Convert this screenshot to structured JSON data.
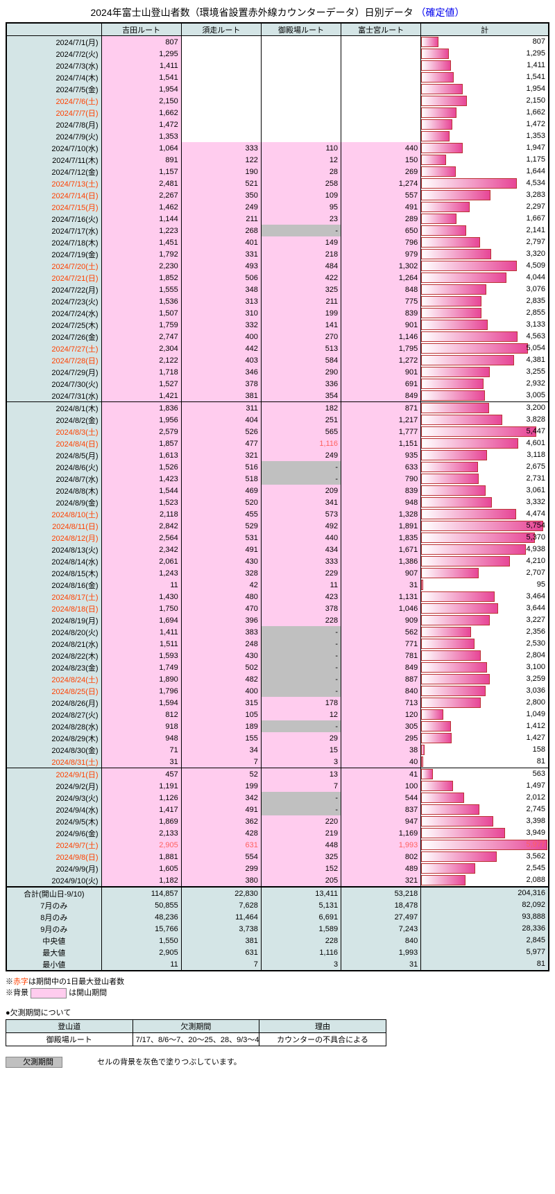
{
  "title_main": "2024年富士山登山者数（環境省設置赤外線カウンターデータ）日別データ",
  "title_confirmed": "（確定値）",
  "columns": [
    "吉田ルート",
    "須走ルート",
    "御殿場ルート",
    "富士宮ルート",
    "計"
  ],
  "bar_max": 6000,
  "rows": [
    {
      "d": "2024/7/1(月)",
      "v": [
        807,
        null,
        null,
        null,
        807
      ],
      "o": [
        1,
        0,
        0,
        0
      ]
    },
    {
      "d": "2024/7/2(火)",
      "v": [
        1295,
        null,
        null,
        null,
        1295
      ],
      "o": [
        1,
        0,
        0,
        0
      ]
    },
    {
      "d": "2024/7/3(水)",
      "v": [
        1411,
        null,
        null,
        null,
        1411
      ],
      "o": [
        1,
        0,
        0,
        0
      ]
    },
    {
      "d": "2024/7/4(木)",
      "v": [
        1541,
        null,
        null,
        null,
        1541
      ],
      "o": [
        1,
        0,
        0,
        0
      ]
    },
    {
      "d": "2024/7/5(金)",
      "v": [
        1954,
        null,
        null,
        null,
        1954
      ],
      "o": [
        1,
        0,
        0,
        0
      ]
    },
    {
      "d": "2024/7/6(土)",
      "h": 1,
      "v": [
        2150,
        null,
        null,
        null,
        2150
      ],
      "o": [
        1,
        0,
        0,
        0
      ]
    },
    {
      "d": "2024/7/7(日)",
      "h": 1,
      "v": [
        1662,
        null,
        null,
        null,
        1662
      ],
      "o": [
        1,
        0,
        0,
        0
      ]
    },
    {
      "d": "2024/7/8(月)",
      "v": [
        1472,
        null,
        null,
        null,
        1472
      ],
      "o": [
        1,
        0,
        0,
        0
      ]
    },
    {
      "d": "2024/7/9(火)",
      "v": [
        1353,
        null,
        null,
        null,
        1353
      ],
      "o": [
        1,
        0,
        0,
        0
      ]
    },
    {
      "d": "2024/7/10(水)",
      "v": [
        1064,
        333,
        110,
        440,
        1947
      ],
      "o": [
        1,
        1,
        1,
        1
      ]
    },
    {
      "d": "2024/7/11(木)",
      "v": [
        891,
        122,
        12,
        150,
        1175
      ],
      "o": [
        1,
        1,
        1,
        1
      ]
    },
    {
      "d": "2024/7/12(金)",
      "v": [
        1157,
        190,
        28,
        269,
        1644
      ],
      "o": [
        1,
        1,
        1,
        1
      ]
    },
    {
      "d": "2024/7/13(土)",
      "h": 1,
      "v": [
        2481,
        521,
        258,
        1274,
        4534
      ],
      "o": [
        1,
        1,
        1,
        1
      ]
    },
    {
      "d": "2024/7/14(日)",
      "h": 1,
      "v": [
        2267,
        350,
        109,
        557,
        3283
      ],
      "o": [
        1,
        1,
        1,
        1
      ]
    },
    {
      "d": "2024/7/15(月)",
      "h": 1,
      "v": [
        1462,
        249,
        95,
        491,
        2297
      ],
      "o": [
        1,
        1,
        1,
        1
      ]
    },
    {
      "d": "2024/7/16(火)",
      "v": [
        1144,
        211,
        23,
        289,
        1667
      ],
      "o": [
        1,
        1,
        1,
        1
      ]
    },
    {
      "d": "2024/7/17(水)",
      "v": [
        1223,
        268,
        "-",
        650,
        2141
      ],
      "o": [
        1,
        1,
        1,
        1
      ],
      "m": [
        0,
        0,
        1,
        0
      ]
    },
    {
      "d": "2024/7/18(木)",
      "v": [
        1451,
        401,
        149,
        796,
        2797
      ],
      "o": [
        1,
        1,
        1,
        1
      ]
    },
    {
      "d": "2024/7/19(金)",
      "v": [
        1792,
        331,
        218,
        979,
        3320
      ],
      "o": [
        1,
        1,
        1,
        1
      ]
    },
    {
      "d": "2024/7/20(土)",
      "h": 1,
      "v": [
        2230,
        493,
        484,
        1302,
        4509
      ],
      "o": [
        1,
        1,
        1,
        1
      ]
    },
    {
      "d": "2024/7/21(日)",
      "h": 1,
      "v": [
        1852,
        506,
        422,
        1264,
        4044
      ],
      "o": [
        1,
        1,
        1,
        1
      ]
    },
    {
      "d": "2024/7/22(月)",
      "v": [
        1555,
        348,
        325,
        848,
        3076
      ],
      "o": [
        1,
        1,
        1,
        1
      ]
    },
    {
      "d": "2024/7/23(火)",
      "v": [
        1536,
        313,
        211,
        775,
        2835
      ],
      "o": [
        1,
        1,
        1,
        1
      ]
    },
    {
      "d": "2024/7/24(水)",
      "v": [
        1507,
        310,
        199,
        839,
        2855
      ],
      "o": [
        1,
        1,
        1,
        1
      ]
    },
    {
      "d": "2024/7/25(木)",
      "v": [
        1759,
        332,
        141,
        901,
        3133
      ],
      "o": [
        1,
        1,
        1,
        1
      ]
    },
    {
      "d": "2024/7/26(金)",
      "v": [
        2747,
        400,
        270,
        1146,
        4563
      ],
      "o": [
        1,
        1,
        1,
        1
      ]
    },
    {
      "d": "2024/7/27(土)",
      "h": 1,
      "v": [
        2304,
        442,
        513,
        1795,
        5054
      ],
      "o": [
        1,
        1,
        1,
        1
      ]
    },
    {
      "d": "2024/7/28(日)",
      "h": 1,
      "v": [
        2122,
        403,
        584,
        1272,
        4381
      ],
      "o": [
        1,
        1,
        1,
        1
      ]
    },
    {
      "d": "2024/7/29(月)",
      "v": [
        1718,
        346,
        290,
        901,
        3255
      ],
      "o": [
        1,
        1,
        1,
        1
      ]
    },
    {
      "d": "2024/7/30(火)",
      "v": [
        1527,
        378,
        336,
        691,
        2932
      ],
      "o": [
        1,
        1,
        1,
        1
      ]
    },
    {
      "d": "2024/7/31(水)",
      "v": [
        1421,
        381,
        354,
        849,
        3005
      ],
      "o": [
        1,
        1,
        1,
        1
      ]
    },
    {
      "d": "2024/8/1(木)",
      "sep": 1,
      "v": [
        1836,
        311,
        182,
        871,
        3200
      ],
      "o": [
        1,
        1,
        1,
        1
      ]
    },
    {
      "d": "2024/8/2(金)",
      "v": [
        1956,
        404,
        251,
        1217,
        3828
      ],
      "o": [
        1,
        1,
        1,
        1
      ]
    },
    {
      "d": "2024/8/3(土)",
      "h": 1,
      "v": [
        2579,
        526,
        565,
        1777,
        5447
      ],
      "o": [
        1,
        1,
        1,
        1
      ]
    },
    {
      "d": "2024/8/4(日)",
      "h": 1,
      "v": [
        1857,
        477,
        1116,
        1151,
        4601
      ],
      "o": [
        1,
        1,
        1,
        1
      ],
      "mx": [
        0,
        0,
        1,
        0,
        0
      ]
    },
    {
      "d": "2024/8/5(月)",
      "v": [
        1613,
        321,
        249,
        935,
        3118
      ],
      "o": [
        1,
        1,
        1,
        1
      ]
    },
    {
      "d": "2024/8/6(火)",
      "v": [
        1526,
        516,
        "-",
        633,
        2675
      ],
      "o": [
        1,
        1,
        1,
        1
      ],
      "m": [
        0,
        0,
        1,
        0
      ]
    },
    {
      "d": "2024/8/7(水)",
      "v": [
        1423,
        518,
        "-",
        790,
        2731
      ],
      "o": [
        1,
        1,
        1,
        1
      ],
      "m": [
        0,
        0,
        1,
        0
      ]
    },
    {
      "d": "2024/8/8(木)",
      "v": [
        1544,
        469,
        209,
        839,
        3061
      ],
      "o": [
        1,
        1,
        1,
        1
      ]
    },
    {
      "d": "2024/8/9(金)",
      "v": [
        1523,
        520,
        341,
        948,
        3332
      ],
      "o": [
        1,
        1,
        1,
        1
      ]
    },
    {
      "d": "2024/8/10(土)",
      "h": 1,
      "v": [
        2118,
        455,
        573,
        1328,
        4474
      ],
      "o": [
        1,
        1,
        1,
        1
      ]
    },
    {
      "d": "2024/8/11(日)",
      "h": 1,
      "v": [
        2842,
        529,
        492,
        1891,
        5754
      ],
      "o": [
        1,
        1,
        1,
        1
      ]
    },
    {
      "d": "2024/8/12(月)",
      "h": 1,
      "v": [
        2564,
        531,
        440,
        1835,
        5370
      ],
      "o": [
        1,
        1,
        1,
        1
      ]
    },
    {
      "d": "2024/8/13(火)",
      "v": [
        2342,
        491,
        434,
        1671,
        4938
      ],
      "o": [
        1,
        1,
        1,
        1
      ]
    },
    {
      "d": "2024/8/14(水)",
      "v": [
        2061,
        430,
        333,
        1386,
        4210
      ],
      "o": [
        1,
        1,
        1,
        1
      ]
    },
    {
      "d": "2024/8/15(木)",
      "v": [
        1243,
        328,
        229,
        907,
        2707
      ],
      "o": [
        1,
        1,
        1,
        1
      ]
    },
    {
      "d": "2024/8/16(金)",
      "v": [
        11,
        42,
        11,
        31,
        95
      ],
      "o": [
        1,
        1,
        1,
        1
      ]
    },
    {
      "d": "2024/8/17(土)",
      "h": 1,
      "v": [
        1430,
        480,
        423,
        1131,
        3464
      ],
      "o": [
        1,
        1,
        1,
        1
      ]
    },
    {
      "d": "2024/8/18(日)",
      "h": 1,
      "v": [
        1750,
        470,
        378,
        1046,
        3644
      ],
      "o": [
        1,
        1,
        1,
        1
      ]
    },
    {
      "d": "2024/8/19(月)",
      "v": [
        1694,
        396,
        228,
        909,
        3227
      ],
      "o": [
        1,
        1,
        1,
        1
      ]
    },
    {
      "d": "2024/8/20(火)",
      "v": [
        1411,
        383,
        "-",
        562,
        2356
      ],
      "o": [
        1,
        1,
        1,
        1
      ],
      "m": [
        0,
        0,
        1,
        0
      ]
    },
    {
      "d": "2024/8/21(水)",
      "v": [
        1511,
        248,
        "-",
        771,
        2530
      ],
      "o": [
        1,
        1,
        1,
        1
      ],
      "m": [
        0,
        0,
        1,
        0
      ]
    },
    {
      "d": "2024/8/22(木)",
      "v": [
        1593,
        430,
        "-",
        781,
        2804
      ],
      "o": [
        1,
        1,
        1,
        1
      ],
      "m": [
        0,
        0,
        1,
        0
      ]
    },
    {
      "d": "2024/8/23(金)",
      "v": [
        1749,
        502,
        "-",
        849,
        3100
      ],
      "o": [
        1,
        1,
        1,
        1
      ],
      "m": [
        0,
        0,
        1,
        0
      ]
    },
    {
      "d": "2024/8/24(土)",
      "h": 1,
      "v": [
        1890,
        482,
        "-",
        887,
        3259
      ],
      "o": [
        1,
        1,
        1,
        1
      ],
      "m": [
        0,
        0,
        1,
        0
      ]
    },
    {
      "d": "2024/8/25(日)",
      "h": 1,
      "v": [
        1796,
        400,
        "-",
        840,
        3036
      ],
      "o": [
        1,
        1,
        1,
        1
      ],
      "m": [
        0,
        0,
        1,
        0
      ]
    },
    {
      "d": "2024/8/26(月)",
      "v": [
        1594,
        315,
        178,
        713,
        2800
      ],
      "o": [
        1,
        1,
        1,
        1
      ]
    },
    {
      "d": "2024/8/27(火)",
      "v": [
        812,
        105,
        12,
        120,
        1049
      ],
      "o": [
        1,
        1,
        1,
        1
      ]
    },
    {
      "d": "2024/8/28(水)",
      "v": [
        918,
        189,
        "-",
        305,
        1412
      ],
      "o": [
        1,
        1,
        1,
        1
      ],
      "m": [
        0,
        0,
        1,
        0
      ]
    },
    {
      "d": "2024/8/29(木)",
      "v": [
        948,
        155,
        29,
        295,
        1427
      ],
      "o": [
        1,
        1,
        1,
        1
      ]
    },
    {
      "d": "2024/8/30(金)",
      "v": [
        71,
        34,
        15,
        38,
        158
      ],
      "o": [
        1,
        1,
        1,
        1
      ]
    },
    {
      "d": "2024/8/31(土)",
      "h": 1,
      "v": [
        31,
        7,
        3,
        40,
        81
      ],
      "o": [
        1,
        1,
        1,
        1
      ]
    },
    {
      "d": "2024/9/1(日)",
      "h": 1,
      "sep": 1,
      "v": [
        457,
        52,
        13,
        41,
        563
      ],
      "o": [
        1,
        1,
        1,
        1
      ]
    },
    {
      "d": "2024/9/2(月)",
      "v": [
        1191,
        199,
        7,
        100,
        1497
      ],
      "o": [
        1,
        1,
        1,
        1
      ]
    },
    {
      "d": "2024/9/3(火)",
      "v": [
        1126,
        342,
        "-",
        544,
        2012
      ],
      "o": [
        1,
        1,
        1,
        1
      ],
      "m": [
        0,
        0,
        1,
        0
      ]
    },
    {
      "d": "2024/9/4(水)",
      "v": [
        1417,
        491,
        "-",
        837,
        2745
      ],
      "o": [
        1,
        1,
        1,
        1
      ],
      "m": [
        0,
        0,
        1,
        0
      ]
    },
    {
      "d": "2024/9/5(木)",
      "v": [
        1869,
        362,
        220,
        947,
        3398
      ],
      "o": [
        1,
        1,
        1,
        1
      ]
    },
    {
      "d": "2024/9/6(金)",
      "v": [
        2133,
        428,
        219,
        1169,
        3949
      ],
      "o": [
        1,
        1,
        1,
        1
      ]
    },
    {
      "d": "2024/9/7(土)",
      "h": 1,
      "v": [
        2905,
        631,
        448,
        1993,
        5977
      ],
      "o": [
        1,
        1,
        1,
        1
      ],
      "mx": [
        1,
        1,
        0,
        1,
        1
      ]
    },
    {
      "d": "2024/9/8(日)",
      "h": 1,
      "v": [
        1881,
        554,
        325,
        802,
        3562
      ],
      "o": [
        1,
        1,
        1,
        1
      ]
    },
    {
      "d": "2024/9/9(月)",
      "v": [
        1605,
        299,
        152,
        489,
        2545
      ],
      "o": [
        1,
        1,
        1,
        1
      ]
    },
    {
      "d": "2024/9/10(火)",
      "v": [
        1182,
        380,
        205,
        321,
        2088
      ],
      "o": [
        1,
        1,
        1,
        1
      ]
    }
  ],
  "summary": [
    {
      "l": "合計(開山日-9/10)",
      "v": [
        114857,
        22830,
        13411,
        53218,
        204316
      ]
    },
    {
      "l": "7月のみ",
      "v": [
        50855,
        7628,
        5131,
        18478,
        82092
      ]
    },
    {
      "l": "8月のみ",
      "v": [
        48236,
        11464,
        6691,
        27497,
        93888
      ]
    },
    {
      "l": "9月のみ",
      "v": [
        15766,
        3738,
        1589,
        7243,
        28336
      ]
    },
    {
      "l": "中央値",
      "v": [
        1550,
        381,
        228,
        840,
        2845
      ]
    },
    {
      "l": "最大値",
      "v": [
        2905,
        631,
        1116,
        1993,
        5977
      ]
    },
    {
      "l": "最小値",
      "v": [
        11,
        7,
        3,
        31,
        81
      ]
    }
  ],
  "note1a": "※",
  "note1b": "赤字",
  "note1c": "は期間中の1日最大登山者数",
  "note2a": "※背景",
  "note2c": "は開山期間",
  "missing_title": "●欠測期間について",
  "missing_headers": [
    "登山道",
    "欠測期間",
    "理由"
  ],
  "missing_row": [
    "御殿場ルート",
    "7/17、8/6～7、20～25、28、9/3～4",
    "カウンターの不具合による"
  ],
  "gray_label": "欠測期間",
  "gray_desc": "セルの背景を灰色で塗りつぶしています。"
}
